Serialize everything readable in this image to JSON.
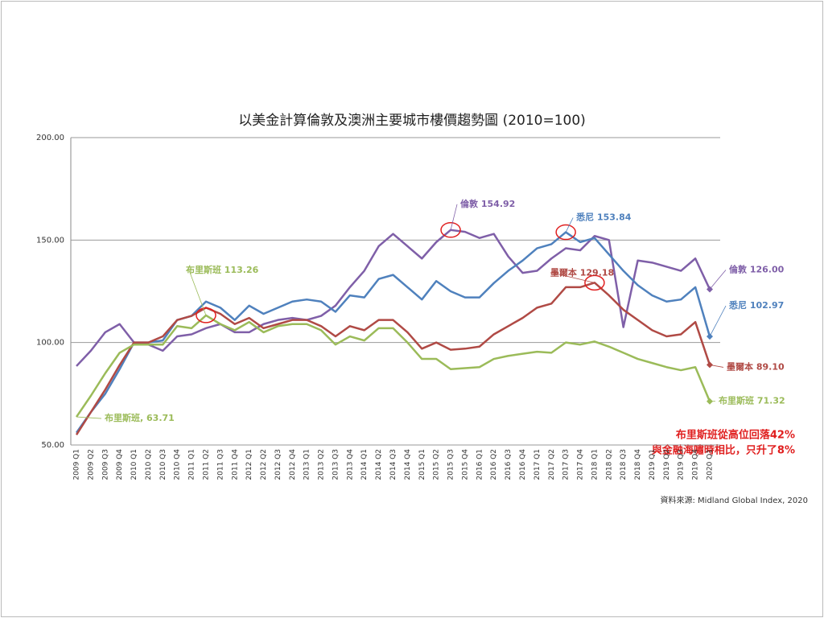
{
  "chart_data": {
    "type": "line",
    "title": "以美金計算倫敦及澳洲主要城市樓價趨勢圖 (2010=100)",
    "categories": [
      "2009 Q1",
      "2009 Q2",
      "2009 Q3",
      "2009 Q4",
      "2010 Q1",
      "2010 Q2",
      "2010 Q3",
      "2010 Q4",
      "2011 Q1",
      "2011 Q2",
      "2011 Q3",
      "2011 Q4",
      "2012 Q1",
      "2012 Q2",
      "2012 Q3",
      "2012 Q4",
      "2013 Q1",
      "2013 Q2",
      "2013 Q3",
      "2013 Q4",
      "2014 Q1",
      "2014 Q2",
      "2014 Q3",
      "2014 Q4",
      "2015 Q1",
      "2015 Q2",
      "2015 Q3",
      "2015 Q4",
      "2016 Q1",
      "2016 Q2",
      "2016 Q3",
      "2016 Q4",
      "2017 Q1",
      "2017 Q2",
      "2017 Q3",
      "2017 Q4",
      "2018 Q1",
      "2018 Q2",
      "2018 Q3",
      "2018 Q4",
      "2019 Q1",
      "2019 Q2",
      "2019 Q3",
      "2019 Q4",
      "2020 Q1"
    ],
    "ylim": [
      50,
      200
    ],
    "yticks": [
      {
        "value": 50,
        "label": "50.00"
      },
      {
        "value": 100,
        "label": "100.00"
      },
      {
        "value": 150,
        "label": "150.00"
      },
      {
        "value": 200,
        "label": "200.00"
      }
    ],
    "grid": true,
    "series": [
      {
        "color": "#7f5fa8",
        "values": [
          88.5,
          96,
          105,
          109,
          100,
          99,
          96,
          103,
          104,
          107,
          109,
          105,
          105,
          109,
          111,
          112,
          111,
          113,
          118,
          127,
          135,
          147,
          153,
          147,
          141,
          149,
          154.92,
          154,
          151,
          153,
          142,
          134,
          135,
          141,
          146,
          145,
          152,
          150,
          107.5,
          140,
          139,
          137,
          135,
          141,
          126.0
        ],
        "value_labels": [
          null,
          null,
          null,
          null,
          null,
          null,
          null,
          null,
          null,
          null,
          null,
          null,
          null,
          null,
          null,
          null,
          null,
          null,
          null,
          null,
          null,
          null,
          null,
          null,
          null,
          null,
          "倫敦 154.92",
          null,
          null,
          null,
          null,
          null,
          null,
          null,
          null,
          null,
          null,
          null,
          null,
          null,
          null,
          null,
          null,
          null,
          "倫敦 126.00"
        ]
      },
      {
        "color": "#4f81bd",
        "values": [
          56,
          66,
          75,
          87,
          100,
          100,
          101,
          111,
          113,
          120,
          117,
          111,
          118,
          114,
          117,
          120,
          121,
          120,
          115,
          123,
          122,
          131,
          133,
          127,
          121,
          130,
          125,
          122,
          122,
          129,
          135,
          140,
          146,
          148,
          153.84,
          149,
          151,
          143,
          135,
          128,
          123,
          120,
          121,
          127,
          102.97
        ],
        "value_labels": [
          null,
          null,
          null,
          null,
          null,
          null,
          null,
          null,
          null,
          null,
          null,
          null,
          null,
          null,
          null,
          null,
          null,
          null,
          null,
          null,
          null,
          null,
          null,
          null,
          null,
          null,
          null,
          null,
          null,
          null,
          null,
          null,
          null,
          null,
          "悉尼 153.84",
          null,
          null,
          null,
          null,
          null,
          null,
          null,
          null,
          null,
          "悉尼 102.97"
        ]
      },
      {
        "color": "#b04a45",
        "values": [
          55,
          66,
          77,
          89,
          100,
          100,
          103,
          111,
          113,
          117,
          114,
          109,
          112,
          107,
          109,
          111,
          111,
          108,
          103,
          108,
          106,
          111,
          111,
          105,
          97,
          100,
          96.5,
          97,
          98,
          104,
          108,
          112,
          117,
          119,
          127,
          127,
          129.18,
          123,
          116,
          111,
          106,
          103,
          104,
          110,
          89.1
        ],
        "value_labels": [
          null,
          null,
          null,
          null,
          null,
          null,
          null,
          null,
          null,
          null,
          null,
          null,
          null,
          null,
          null,
          null,
          null,
          null,
          null,
          null,
          null,
          null,
          null,
          null,
          null,
          null,
          null,
          null,
          null,
          null,
          null,
          null,
          null,
          null,
          null,
          null,
          "墨爾本 129.18",
          null,
          null,
          null,
          null,
          null,
          null,
          null,
          "墨爾本 89.10"
        ]
      },
      {
        "color": "#9bbb59",
        "values": [
          63.71,
          74,
          85,
          95,
          99,
          99,
          99,
          108,
          107,
          113.26,
          109,
          106,
          110,
          105,
          108,
          109,
          109,
          106,
          99,
          103,
          101,
          107,
          107,
          100,
          92,
          92,
          87,
          87.5,
          88,
          92,
          93.5,
          94.5,
          95.5,
          95,
          100,
          99,
          100.5,
          98,
          95,
          92,
          90,
          88,
          86.5,
          88,
          71.32
        ],
        "value_labels": [
          "布里斯班, 63.71",
          null,
          null,
          null,
          null,
          null,
          null,
          null,
          null,
          "布里斯班 113.26",
          null,
          null,
          null,
          null,
          null,
          null,
          null,
          null,
          null,
          null,
          null,
          null,
          null,
          null,
          null,
          null,
          null,
          null,
          null,
          null,
          null,
          null,
          null,
          null,
          null,
          null,
          null,
          null,
          null,
          null,
          null,
          null,
          null,
          null,
          "布里斯班 71.32"
        ]
      }
    ],
    "annotations": [
      "布里斯班從高位回落42%",
      "與金融海嘯時相比，只升了8%"
    ],
    "source": "資料來源: Midland Global Index, 2020"
  }
}
